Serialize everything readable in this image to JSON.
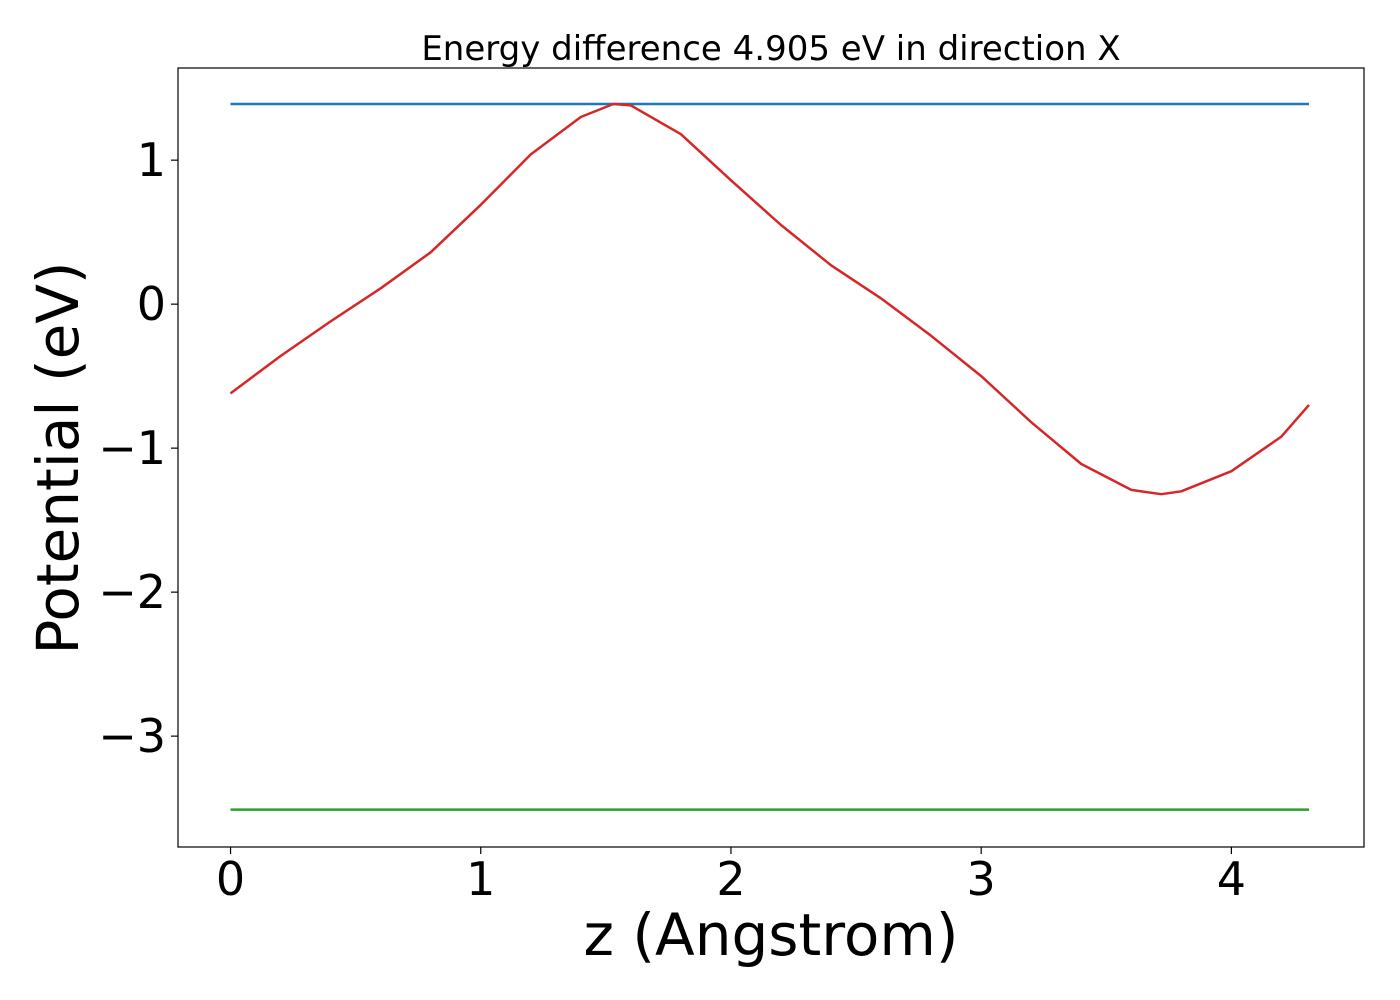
{
  "chart_data": {
    "type": "line",
    "title": "Energy difference 4.905 eV in direction X",
    "xlabel": "z (Angstrom)",
    "ylabel": "Potential (eV)",
    "xlim": [
      -0.21,
      4.53
    ],
    "ylim": [
      -3.77,
      1.64
    ],
    "xticks": [
      0,
      1,
      2,
      3,
      4
    ],
    "yticks": [
      1,
      0,
      -1,
      -2,
      -3
    ],
    "xtick_labels": [
      "0",
      "1",
      "2",
      "3",
      "4"
    ],
    "ytick_labels": [
      "1",
      "0",
      "−1",
      "−2",
      "−3"
    ],
    "grid": false,
    "legend": "none",
    "series": [
      {
        "color": "#1f77b4",
        "x": [
          0,
          4.31
        ],
        "y": [
          1.39,
          1.39
        ]
      },
      {
        "color": "#2ca02c",
        "x": [
          0,
          4.31
        ],
        "y": [
          -3.51,
          -3.51
        ]
      },
      {
        "color": "#d62728",
        "x": [
          0,
          0.2,
          0.4,
          0.6,
          0.8,
          1.0,
          1.2,
          1.4,
          1.53,
          1.6,
          1.8,
          2.0,
          2.2,
          2.4,
          2.6,
          2.8,
          3.0,
          3.2,
          3.4,
          3.6,
          3.72,
          3.8,
          4.0,
          4.2,
          4.31
        ],
        "y": [
          -0.62,
          -0.36,
          -0.12,
          0.11,
          0.36,
          0.69,
          1.04,
          1.3,
          1.39,
          1.38,
          1.18,
          0.86,
          0.55,
          0.27,
          0.04,
          -0.22,
          -0.5,
          -0.82,
          -1.11,
          -1.29,
          -1.32,
          -1.3,
          -1.16,
          -0.92,
          -0.7
        ]
      }
    ]
  }
}
